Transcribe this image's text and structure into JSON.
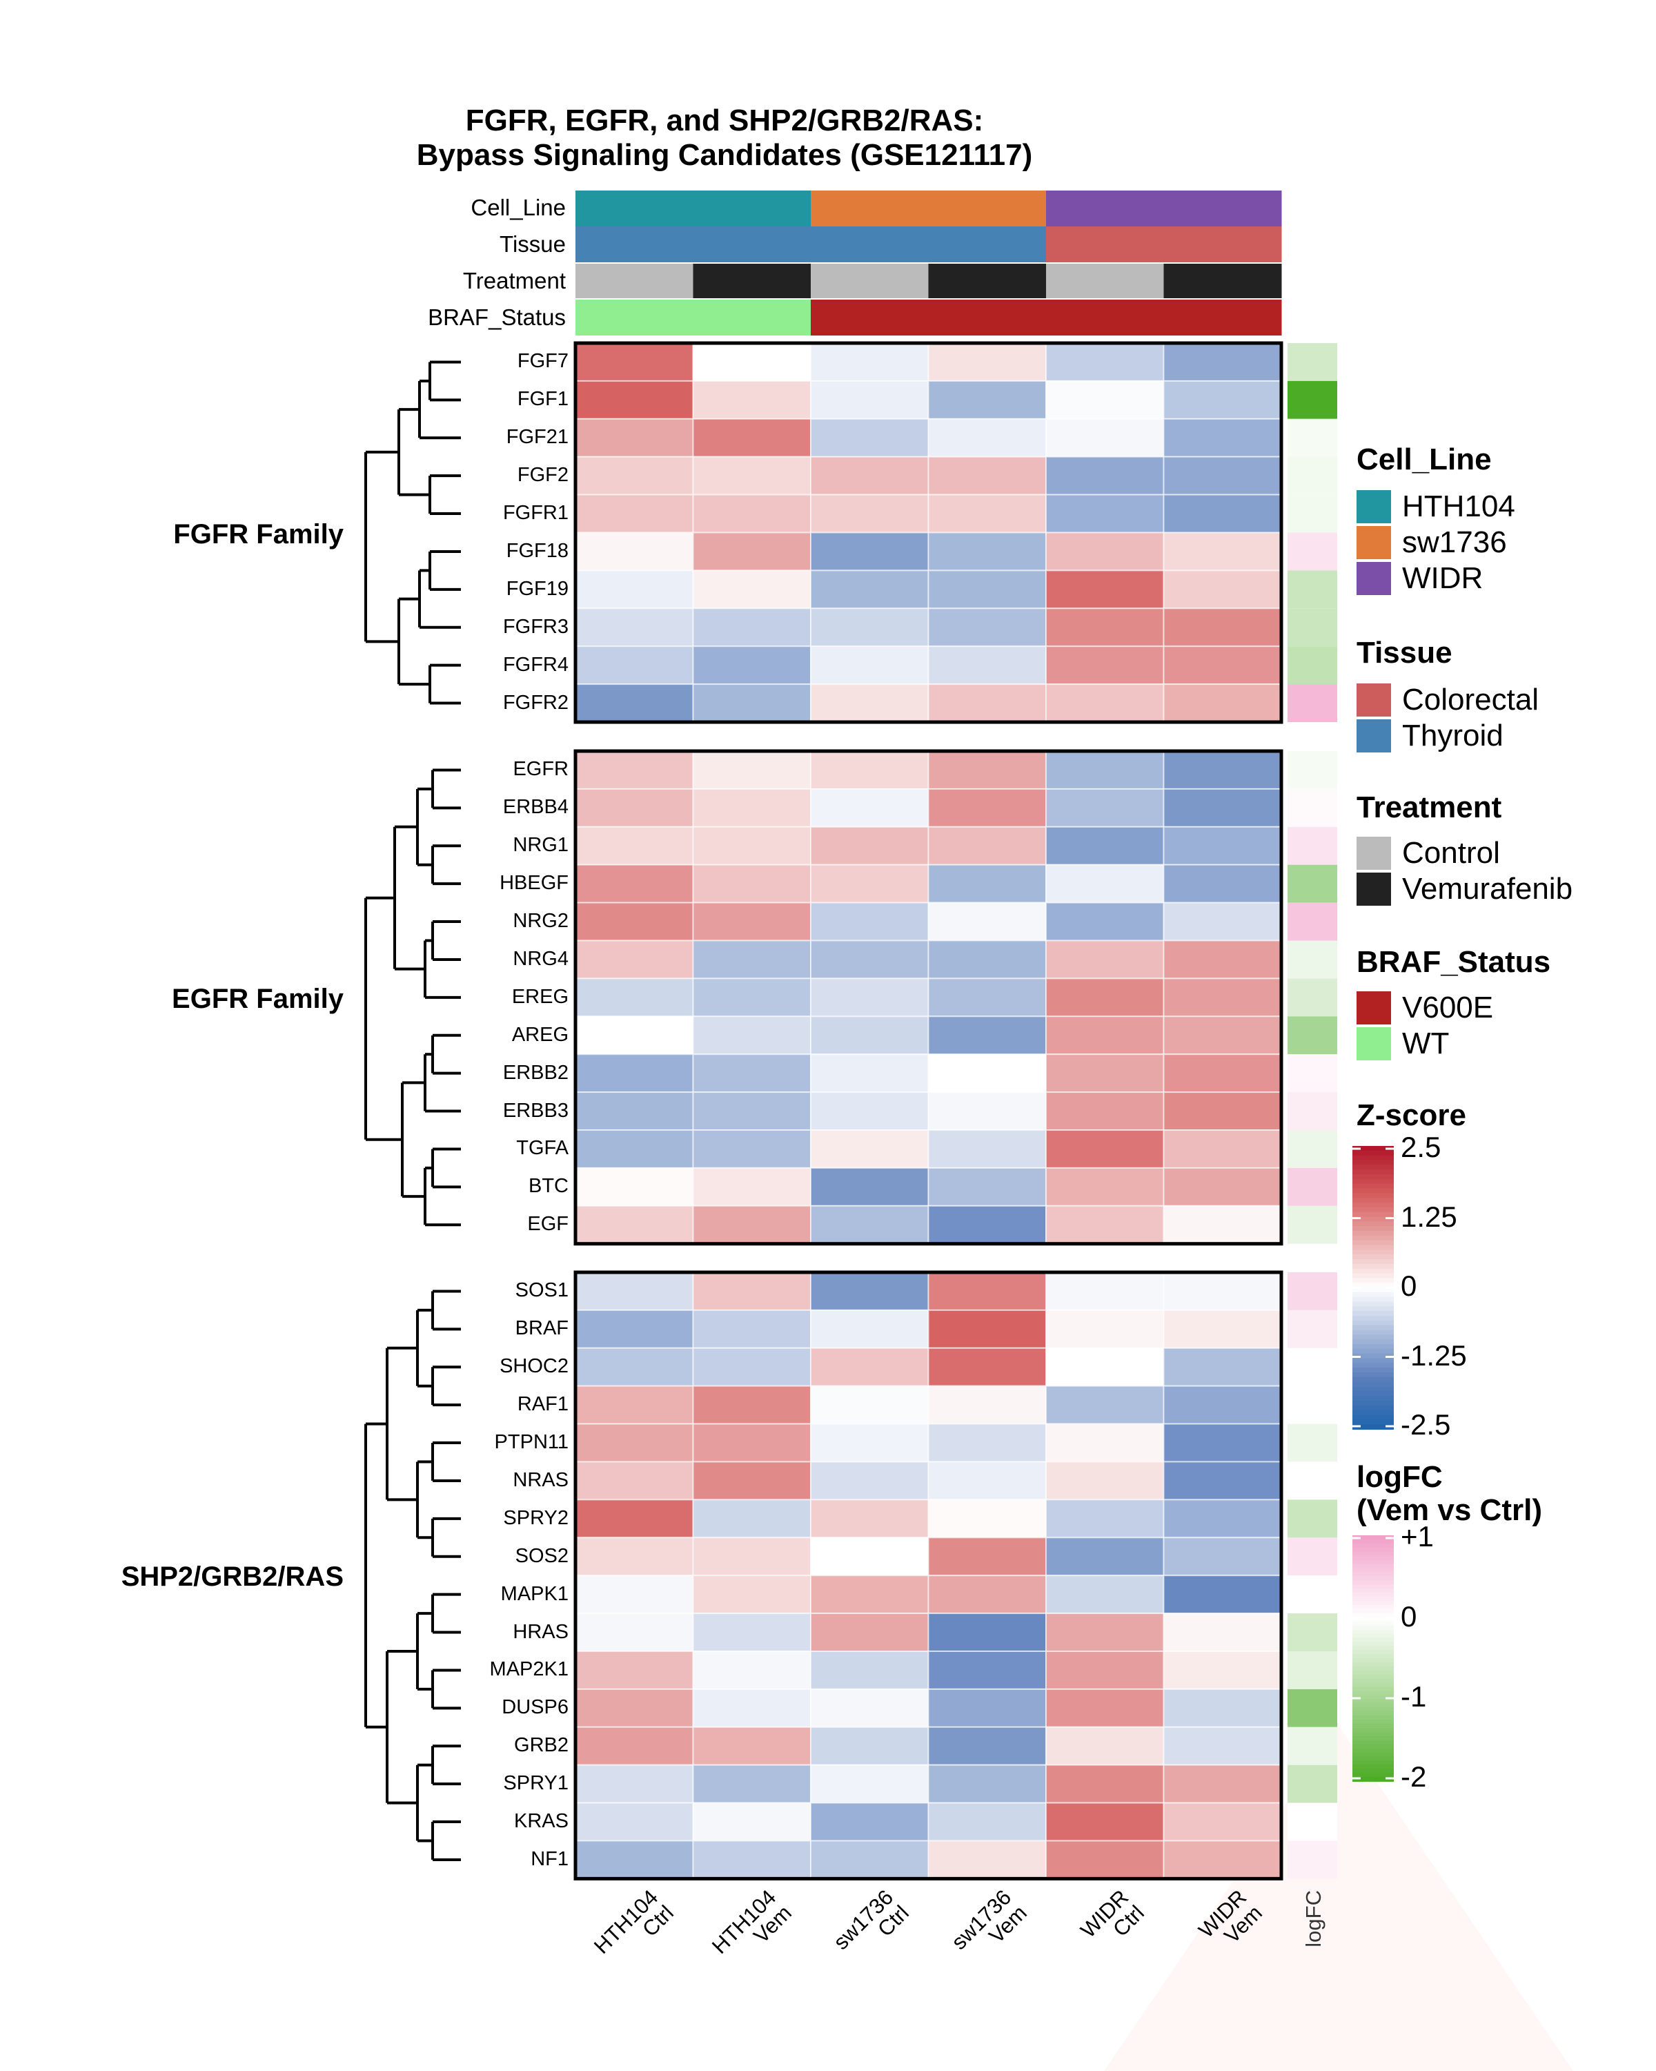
{
  "chart_data": {
    "type": "heatmap",
    "title": "FGFR, EGFR, and SHP2/GRB2/RAS:\nBypass Signaling Candidates (GSE121117)",
    "title_lines": [
      "FGFR, EGFR, and SHP2/GRB2/RAS:",
      "Bypass Signaling Candidates (GSE121117)"
    ],
    "columns": [
      {
        "line1": "HTH104",
        "line2": "Ctrl"
      },
      {
        "line1": "HTH104",
        "line2": "Vem"
      },
      {
        "line1": "sw1736",
        "line2": "Ctrl"
      },
      {
        "line1": "sw1736",
        "line2": "Vem"
      },
      {
        "line1": "WIDR",
        "line2": "Ctrl"
      },
      {
        "line1": "WIDR",
        "line2": "Vem"
      }
    ],
    "logfc_column_label": "logFC",
    "annotations": [
      {
        "name": "Cell_Line",
        "values": [
          "HTH104",
          "HTH104",
          "sw1736",
          "sw1736",
          "WIDR",
          "WIDR"
        ]
      },
      {
        "name": "Tissue",
        "values": [
          "Thyroid",
          "Thyroid",
          "Thyroid",
          "Thyroid",
          "Colorectal",
          "Colorectal"
        ]
      },
      {
        "name": "Treatment",
        "values": [
          "Control",
          "Vemurafenib",
          "Control",
          "Vemurafenib",
          "Control",
          "Vemurafenib"
        ]
      },
      {
        "name": "BRAF_Status",
        "values": [
          "WT",
          "WT",
          "V600E",
          "V600E",
          "V600E",
          "V600E"
        ]
      }
    ],
    "groups": [
      {
        "name": "FGFR Family",
        "rows": [
          {
            "gene": "FGF7",
            "z": [
              1.5,
              0.0,
              -0.2,
              0.3,
              -0.6,
              -1.1
            ],
            "logfc": -0.5
          },
          {
            "gene": "FGF1",
            "z": [
              1.6,
              0.4,
              -0.2,
              -0.9,
              -0.05,
              -0.7
            ],
            "logfc": -2.0
          },
          {
            "gene": "FGF21",
            "z": [
              0.9,
              1.3,
              -0.6,
              -0.2,
              -0.1,
              -1.0
            ],
            "logfc": -0.1
          },
          {
            "gene": "FGF2",
            "z": [
              0.5,
              0.4,
              0.7,
              0.7,
              -1.1,
              -1.1
            ],
            "logfc": -0.15
          },
          {
            "gene": "FGFR1",
            "z": [
              0.6,
              0.6,
              0.5,
              0.5,
              -1.0,
              -1.2
            ],
            "logfc": -0.15
          },
          {
            "gene": "FGF18",
            "z": [
              0.1,
              0.9,
              -1.2,
              -0.9,
              0.7,
              0.4
            ],
            "logfc": 0.3
          },
          {
            "gene": "FGF19",
            "z": [
              -0.2,
              0.15,
              -0.9,
              -0.9,
              1.5,
              0.5
            ],
            "logfc": -0.6
          },
          {
            "gene": "FGFR3",
            "z": [
              -0.4,
              -0.6,
              -0.5,
              -0.8,
              1.2,
              1.2
            ],
            "logfc": -0.6
          },
          {
            "gene": "FGFR4",
            "z": [
              -0.6,
              -1.0,
              -0.2,
              -0.4,
              1.1,
              1.1
            ],
            "logfc": -0.7
          },
          {
            "gene": "FGFR2",
            "z": [
              -1.3,
              -0.9,
              0.3,
              0.6,
              0.6,
              0.8
            ],
            "logfc": 0.75
          }
        ]
      },
      {
        "name": "EGFR Family",
        "rows": [
          {
            "gene": "EGFR",
            "z": [
              0.6,
              0.2,
              0.4,
              0.9,
              -0.9,
              -1.3
            ],
            "logfc": -0.1
          },
          {
            "gene": "ERBB4",
            "z": [
              0.7,
              0.4,
              -0.15,
              1.1,
              -0.8,
              -1.3
            ],
            "logfc": 0.05
          },
          {
            "gene": "NRG1",
            "z": [
              0.4,
              0.4,
              0.7,
              0.7,
              -1.2,
              -1.0
            ],
            "logfc": 0.3
          },
          {
            "gene": "HBEGF",
            "z": [
              1.1,
              0.6,
              0.5,
              -0.9,
              -0.2,
              -1.1
            ],
            "logfc": -1.0
          },
          {
            "gene": "NRG2",
            "z": [
              1.2,
              1.0,
              -0.6,
              -0.1,
              -1.0,
              -0.4
            ],
            "logfc": 0.6
          },
          {
            "gene": "NRG4",
            "z": [
              0.6,
              -0.8,
              -0.8,
              -0.9,
              0.7,
              1.0
            ],
            "logfc": -0.2
          },
          {
            "gene": "EREG",
            "z": [
              -0.5,
              -0.7,
              -0.4,
              -0.8,
              1.2,
              1.0
            ],
            "logfc": -0.4
          },
          {
            "gene": "AREG",
            "z": [
              0.0,
              -0.4,
              -0.5,
              -1.2,
              1.0,
              0.9
            ],
            "logfc": -1.0
          },
          {
            "gene": "ERBB2",
            "z": [
              -1.0,
              -0.8,
              -0.2,
              0.0,
              0.9,
              1.1
            ],
            "logfc": 0.1
          },
          {
            "gene": "ERBB3",
            "z": [
              -0.9,
              -0.8,
              -0.3,
              -0.1,
              1.0,
              1.2
            ],
            "logfc": 0.2
          },
          {
            "gene": "TGFA",
            "z": [
              -0.9,
              -0.8,
              0.2,
              -0.4,
              1.4,
              0.7
            ],
            "logfc": -0.2
          },
          {
            "gene": "BTC",
            "z": [
              0.05,
              0.25,
              -1.3,
              -0.8,
              0.8,
              0.9
            ],
            "logfc": 0.5
          },
          {
            "gene": "EGF",
            "z": [
              0.5,
              0.9,
              -0.8,
              -1.4,
              0.6,
              0.1
            ],
            "logfc": -0.25
          }
        ]
      },
      {
        "name": "SHP2/GRB2/RAS",
        "rows": [
          {
            "gene": "SOS1",
            "z": [
              -0.4,
              0.6,
              -1.3,
              1.3,
              -0.1,
              -0.1
            ],
            "logfc": 0.4
          },
          {
            "gene": "BRAF",
            "z": [
              -1.0,
              -0.6,
              -0.2,
              1.6,
              0.1,
              0.2
            ],
            "logfc": 0.2
          },
          {
            "gene": "SHOC2",
            "z": [
              -0.7,
              -0.6,
              0.6,
              1.5,
              0.0,
              -0.8
            ],
            "logfc": 0.0
          },
          {
            "gene": "RAF1",
            "z": [
              0.8,
              1.2,
              -0.05,
              0.1,
              -0.8,
              -1.1
            ],
            "logfc": 0.0
          },
          {
            "gene": "PTPN11",
            "z": [
              0.9,
              1.0,
              -0.15,
              -0.4,
              0.1,
              -1.4
            ],
            "logfc": -0.2
          },
          {
            "gene": "NRAS",
            "z": [
              0.6,
              1.2,
              -0.4,
              -0.2,
              0.3,
              -1.4
            ],
            "logfc": 0.0
          },
          {
            "gene": "SPRY2",
            "z": [
              1.5,
              -0.5,
              0.5,
              0.05,
              -0.6,
              -1.0
            ],
            "logfc": -0.6
          },
          {
            "gene": "SOS2",
            "z": [
              0.4,
              0.4,
              0.0,
              1.2,
              -1.2,
              -0.8
            ],
            "logfc": 0.3
          },
          {
            "gene": "MAPK1",
            "z": [
              -0.1,
              0.4,
              0.8,
              0.9,
              -0.5,
              -1.5
            ],
            "logfc": 0.0
          },
          {
            "gene": "HRAS",
            "z": [
              -0.1,
              -0.4,
              0.9,
              -1.5,
              0.9,
              0.1
            ],
            "logfc": -0.5
          },
          {
            "gene": "MAP2K1",
            "z": [
              0.7,
              -0.1,
              -0.5,
              -1.4,
              1.0,
              0.2
            ],
            "logfc": -0.3
          },
          {
            "gene": "DUSP6",
            "z": [
              0.9,
              -0.2,
              -0.1,
              -1.1,
              1.1,
              -0.5
            ],
            "logfc": -1.3
          },
          {
            "gene": "GRB2",
            "z": [
              1.0,
              0.8,
              -0.5,
              -1.3,
              0.3,
              -0.4
            ],
            "logfc": -0.2
          },
          {
            "gene": "SPRY1",
            "z": [
              -0.4,
              -0.8,
              -0.15,
              -0.9,
              1.2,
              0.9
            ],
            "logfc": -0.6
          },
          {
            "gene": "KRAS",
            "z": [
              -0.4,
              -0.1,
              -1.0,
              -0.5,
              1.5,
              0.6
            ],
            "logfc": 0.0
          },
          {
            "gene": "NF1",
            "z": [
              -0.9,
              -0.6,
              -0.7,
              0.3,
              1.2,
              0.8
            ],
            "logfc": 0.15
          }
        ]
      }
    ],
    "legends": {
      "cell_line": {
        "title": "Cell_Line",
        "items": [
          {
            "label": "HTH104",
            "color": "#2196a0"
          },
          {
            "label": "sw1736",
            "color": "#e07b3a"
          },
          {
            "label": "WIDR",
            "color": "#7b4fa8"
          }
        ]
      },
      "tissue": {
        "title": "Tissue",
        "items": [
          {
            "label": "Colorectal",
            "color": "#cd5c5c"
          },
          {
            "label": "Thyroid",
            "color": "#4682b4"
          }
        ]
      },
      "treatment": {
        "title": "Treatment",
        "items": [
          {
            "label": "Control",
            "color": "#bbbbbb"
          },
          {
            "label": "Vemurafenib",
            "color": "#222222"
          }
        ]
      },
      "braf_status": {
        "title": "BRAF_Status",
        "items": [
          {
            "label": "V600E",
            "color": "#b22222"
          },
          {
            "label": "WT",
            "color": "#90ee90"
          }
        ]
      },
      "zscore": {
        "title": "Z-score",
        "range": [
          -2.5,
          2.5
        ],
        "ticks": [
          "2.5",
          "1.25",
          "0",
          "-1.25",
          "-2.5"
        ],
        "tick_values": [
          2.5,
          1.25,
          0,
          -1.25,
          -2.5
        ],
        "colors": {
          "low": "#2166ac",
          "mid": "#ffffff",
          "high": "#b2182b"
        }
      },
      "logfc": {
        "title_line1": "logFC",
        "title_line2": "(Vem vs Ctrl)",
        "range": [
          -2,
          1
        ],
        "ticks": [
          "+1",
          "0",
          "-1",
          "-2"
        ],
        "tick_values": [
          1,
          0,
          -1,
          -2
        ],
        "colors": {
          "low": "#4dac26",
          "mid": "#ffffff",
          "high": "#f1a0c8"
        }
      }
    }
  }
}
